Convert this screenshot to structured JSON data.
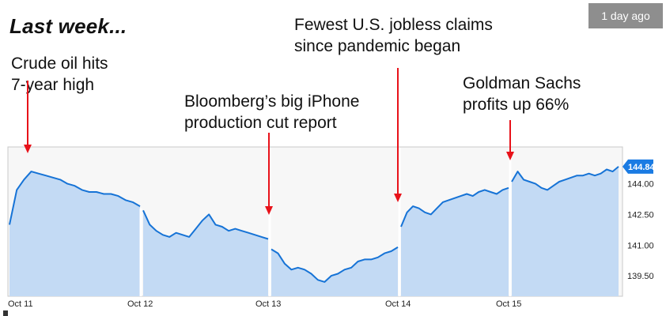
{
  "headline": "Last week...",
  "badge": "1 day ago",
  "annotations": [
    {
      "id": "oil",
      "lines": [
        "Crude oil hits",
        "7-year high"
      ],
      "x": "Oct 11",
      "y": 144.6
    },
    {
      "id": "iphone",
      "lines": [
        "Bloomberg’s big iPhone",
        "production cut report"
      ],
      "x": "Oct 13",
      "y": 142.0
    },
    {
      "id": "jobless",
      "lines": [
        "Fewest U.S. jobless claims",
        "since pandemic began"
      ],
      "x": "Oct 14",
      "y": 142.8
    },
    {
      "id": "goldman",
      "lines": [
        "Goldman Sachs",
        "profits up 66%"
      ],
      "x": "Oct 15",
      "y": 144.3
    }
  ],
  "colors": {
    "line": "#1673d6",
    "fill": "#c3daf4",
    "arrow": "#e8121a",
    "tag": "#1a7be3",
    "gap": "#ffffff",
    "frame": "#c8c8c8"
  },
  "chart_data": {
    "type": "area",
    "title": "",
    "xlabel": "",
    "ylabel": "",
    "categories": [
      "Oct 11",
      "Oct 12",
      "Oct 13",
      "Oct 14",
      "Oct 15"
    ],
    "y_ticks": [
      "144.00",
      "142.50",
      "141.00",
      "139.50"
    ],
    "ylim": [
      138.5,
      145.8
    ],
    "last_price": "144.84",
    "y_axis_side": "right",
    "grid": false,
    "series": [
      {
        "values": [
          [
            142.0,
            143.7,
            144.2,
            144.6,
            144.5,
            144.4,
            144.3,
            144.2,
            144.0,
            143.9,
            143.7,
            143.6,
            143.6,
            143.5,
            143.5,
            143.4,
            143.2,
            143.1,
            142.9
          ],
          [
            142.7,
            142.0,
            141.7,
            141.5,
            141.4,
            141.6,
            141.5,
            141.4,
            141.8,
            142.2,
            142.5,
            142.0,
            141.9,
            141.7,
            141.8,
            141.7,
            141.6,
            141.5,
            141.4,
            141.3
          ],
          [
            140.8,
            140.6,
            140.1,
            139.8,
            139.9,
            139.8,
            139.6,
            139.3,
            139.2,
            139.5,
            139.6,
            139.8,
            139.9,
            140.2,
            140.3,
            140.3,
            140.4,
            140.6,
            140.7,
            140.9
          ],
          [
            141.9,
            142.6,
            142.9,
            142.8,
            142.6,
            142.5,
            142.8,
            143.1,
            143.2,
            143.3,
            143.4,
            143.5,
            143.4,
            143.6,
            143.7,
            143.6,
            143.5,
            143.7,
            143.8
          ],
          [
            144.1,
            144.6,
            144.2,
            144.1,
            144.0,
            143.8,
            143.7,
            143.9,
            144.1,
            144.2,
            144.3,
            144.4,
            144.4,
            144.5,
            144.4,
            144.5,
            144.7,
            144.6,
            144.84
          ]
        ]
      }
    ]
  }
}
